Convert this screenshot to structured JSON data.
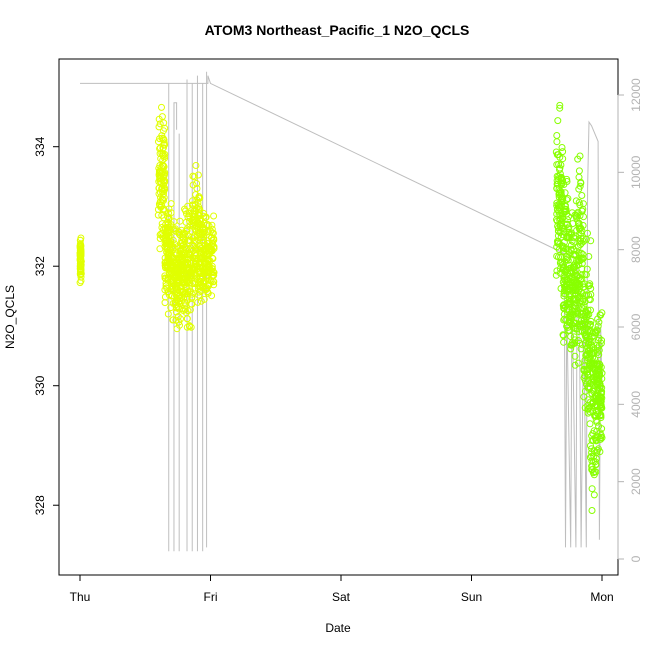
{
  "chart_data": {
    "type": "scatter",
    "title": "ATOM3 Northeast_Pacific_1 N2O_QCLS",
    "xlabel": "Date",
    "ylabel": "N2O_QCLS",
    "x_ticks": [
      "Thu",
      "Fri",
      "Sat",
      "Sun",
      "Mon"
    ],
    "xlim": [
      0,
      4
    ],
    "ylim": [
      327.1,
      335.2
    ],
    "y_ticks": [
      328,
      330,
      332,
      334
    ],
    "y2lim": [
      -400,
      13200
    ],
    "y2_ticks": [
      0,
      2000,
      4000,
      6000,
      8000,
      10000,
      12000
    ],
    "colors": {
      "flight1": "#e0ff00",
      "flight2": "#88ff00",
      "altitude_line": "#bebebe",
      "axis": "#000000",
      "right_axis": "#b3b3b3"
    },
    "series": [
      {
        "clusters": [
          {
            "x0": 0.0,
            "x1": 0.01,
            "ymin": 331.6,
            "ymax": 332.6
          },
          {
            "x0": 0.6,
            "x1": 0.65,
            "ymin": 332.0,
            "ymax": 334.95
          },
          {
            "x0": 0.65,
            "x1": 0.7,
            "ymin": 331.0,
            "ymax": 333.5
          },
          {
            "x0": 0.7,
            "x1": 0.78,
            "ymin": 330.8,
            "ymax": 333.0
          },
          {
            "x0": 0.78,
            "x1": 0.86,
            "ymin": 330.6,
            "ymax": 333.3
          },
          {
            "x0": 0.86,
            "x1": 0.92,
            "ymin": 330.8,
            "ymax": 333.9
          },
          {
            "x0": 0.92,
            "x1": 1.03,
            "ymin": 331.0,
            "ymax": 333.2
          }
        ]
      },
      {
        "clusters": [
          {
            "x0": 3.65,
            "x1": 3.7,
            "ymin": 331.0,
            "ymax": 334.95
          },
          {
            "x0": 3.7,
            "x1": 3.75,
            "ymin": 330.2,
            "ymax": 333.9
          },
          {
            "x0": 3.75,
            "x1": 3.8,
            "ymin": 329.8,
            "ymax": 333.6
          },
          {
            "x0": 3.8,
            "x1": 3.86,
            "ymin": 329.5,
            "ymax": 334.5
          },
          {
            "x0": 3.86,
            "x1": 3.92,
            "ymin": 328.5,
            "ymax": 333.0
          },
          {
            "x0": 3.92,
            "x1": 3.96,
            "ymin": 327.3,
            "ymax": 332.0
          },
          {
            "x0": 3.96,
            "x1": 4.0,
            "ymin": 328.5,
            "ymax": 331.5
          }
        ]
      }
    ],
    "altitude": {
      "points": [
        [
          0.0,
          12300
        ],
        [
          0.68,
          12300
        ],
        [
          0.98,
          12300
        ],
        [
          0.98,
          12500
        ],
        [
          1.0,
          12300
        ],
        [
          3.71,
          7900
        ],
        [
          3.72,
          300
        ],
        [
          3.73,
          6500
        ],
        [
          3.76,
          300
        ],
        [
          3.77,
          7000
        ],
        [
          3.8,
          300
        ],
        [
          3.81,
          7600
        ],
        [
          3.83,
          5000
        ],
        [
          3.84,
          300
        ],
        [
          3.86,
          6500
        ],
        [
          3.88,
          300
        ],
        [
          3.89,
          9600
        ],
        [
          3.9,
          11300
        ],
        [
          3.92,
          11200
        ],
        [
          3.97,
          10800
        ],
        [
          3.98,
          500
        ],
        [
          3.99,
          6000
        ],
        [
          4.0,
          4400
        ]
      ],
      "spikes": [
        {
          "x": 0.68,
          "top": 12300,
          "bottom": 200
        },
        {
          "x": 0.72,
          "top": 11800,
          "bottom": 200
        },
        {
          "x": 0.76,
          "top": 11000,
          "bottom": 200
        },
        {
          "x": 0.82,
          "top": 12400,
          "bottom": 200
        },
        {
          "x": 0.86,
          "top": 12300,
          "bottom": 200
        },
        {
          "x": 0.9,
          "top": 12500,
          "bottom": 200
        },
        {
          "x": 0.94,
          "top": 12300,
          "bottom": 200
        },
        {
          "x": 0.97,
          "top": 12600,
          "bottom": 300
        }
      ],
      "plateau": [
        [
          0.72,
          11000
        ],
        [
          0.72,
          11800
        ],
        [
          0.74,
          11800
        ],
        [
          0.74,
          11100
        ]
      ]
    }
  }
}
